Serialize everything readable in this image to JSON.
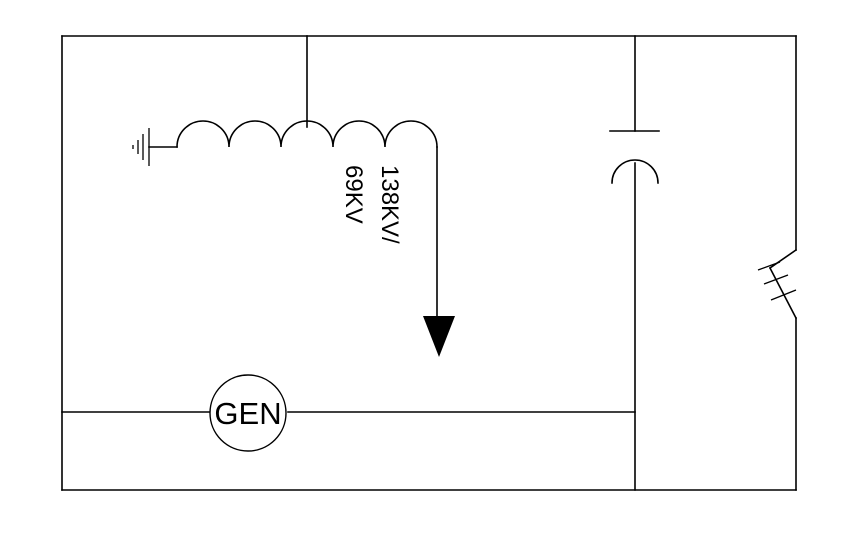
{
  "diagram": {
    "generator_label": "GEN",
    "transformer_rating_line1": "138KV/",
    "transformer_rating_line2": "69KV"
  },
  "colors": {
    "line": "#000000",
    "background": "#ffffff"
  }
}
